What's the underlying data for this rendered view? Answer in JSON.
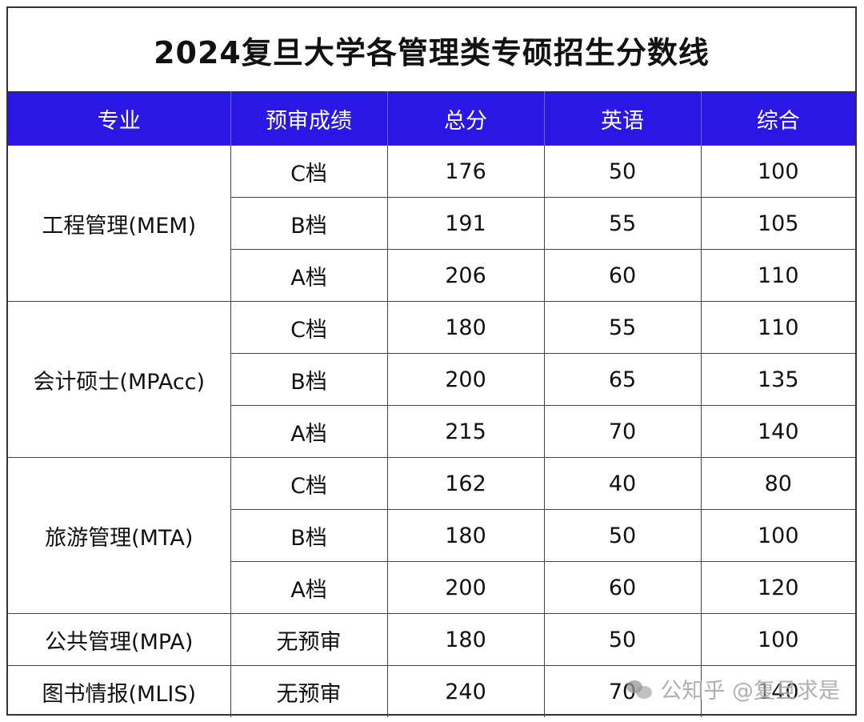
{
  "title": "2024复旦大学各管理类专硕招生分数线",
  "headers": [
    "专业",
    "预审成绩",
    "总分",
    "英语",
    "综合"
  ],
  "groups": [
    {
      "program": "工程管理(MEM)",
      "rows": [
        {
          "grade": "C档",
          "total": "176",
          "english": "50",
          "comprehensive": "100"
        },
        {
          "grade": "B档",
          "total": "191",
          "english": "55",
          "comprehensive": "105"
        },
        {
          "grade": "A档",
          "total": "206",
          "english": "60",
          "comprehensive": "110"
        }
      ]
    },
    {
      "program": "会计硕士(MPAcc)",
      "rows": [
        {
          "grade": "C档",
          "total": "180",
          "english": "55",
          "comprehensive": "110"
        },
        {
          "grade": "B档",
          "total": "200",
          "english": "65",
          "comprehensive": "135"
        },
        {
          "grade": "A档",
          "total": "215",
          "english": "70",
          "comprehensive": "140"
        }
      ]
    },
    {
      "program": "旅游管理(MTA)",
      "rows": [
        {
          "grade": "C档",
          "total": "162",
          "english": "40",
          "comprehensive": "80"
        },
        {
          "grade": "B档",
          "total": "180",
          "english": "50",
          "comprehensive": "100"
        },
        {
          "grade": "A档",
          "total": "200",
          "english": "60",
          "comprehensive": "120"
        }
      ]
    },
    {
      "program": "公共管理(MPA)",
      "rows": [
        {
          "grade": "无预审",
          "total": "180",
          "english": "50",
          "comprehensive": "100"
        }
      ]
    },
    {
      "program": "图书情报(MLIS)",
      "rows": [
        {
          "grade": "无预审",
          "total": "240",
          "english": "70",
          "comprehensive": "140"
        }
      ]
    }
  ],
  "watermark": {
    "text": "公知乎 @复旦求是",
    "icon": "wechat-icon"
  },
  "colors": {
    "header_bg": "#2a17e6",
    "header_text": "#ffffff"
  }
}
